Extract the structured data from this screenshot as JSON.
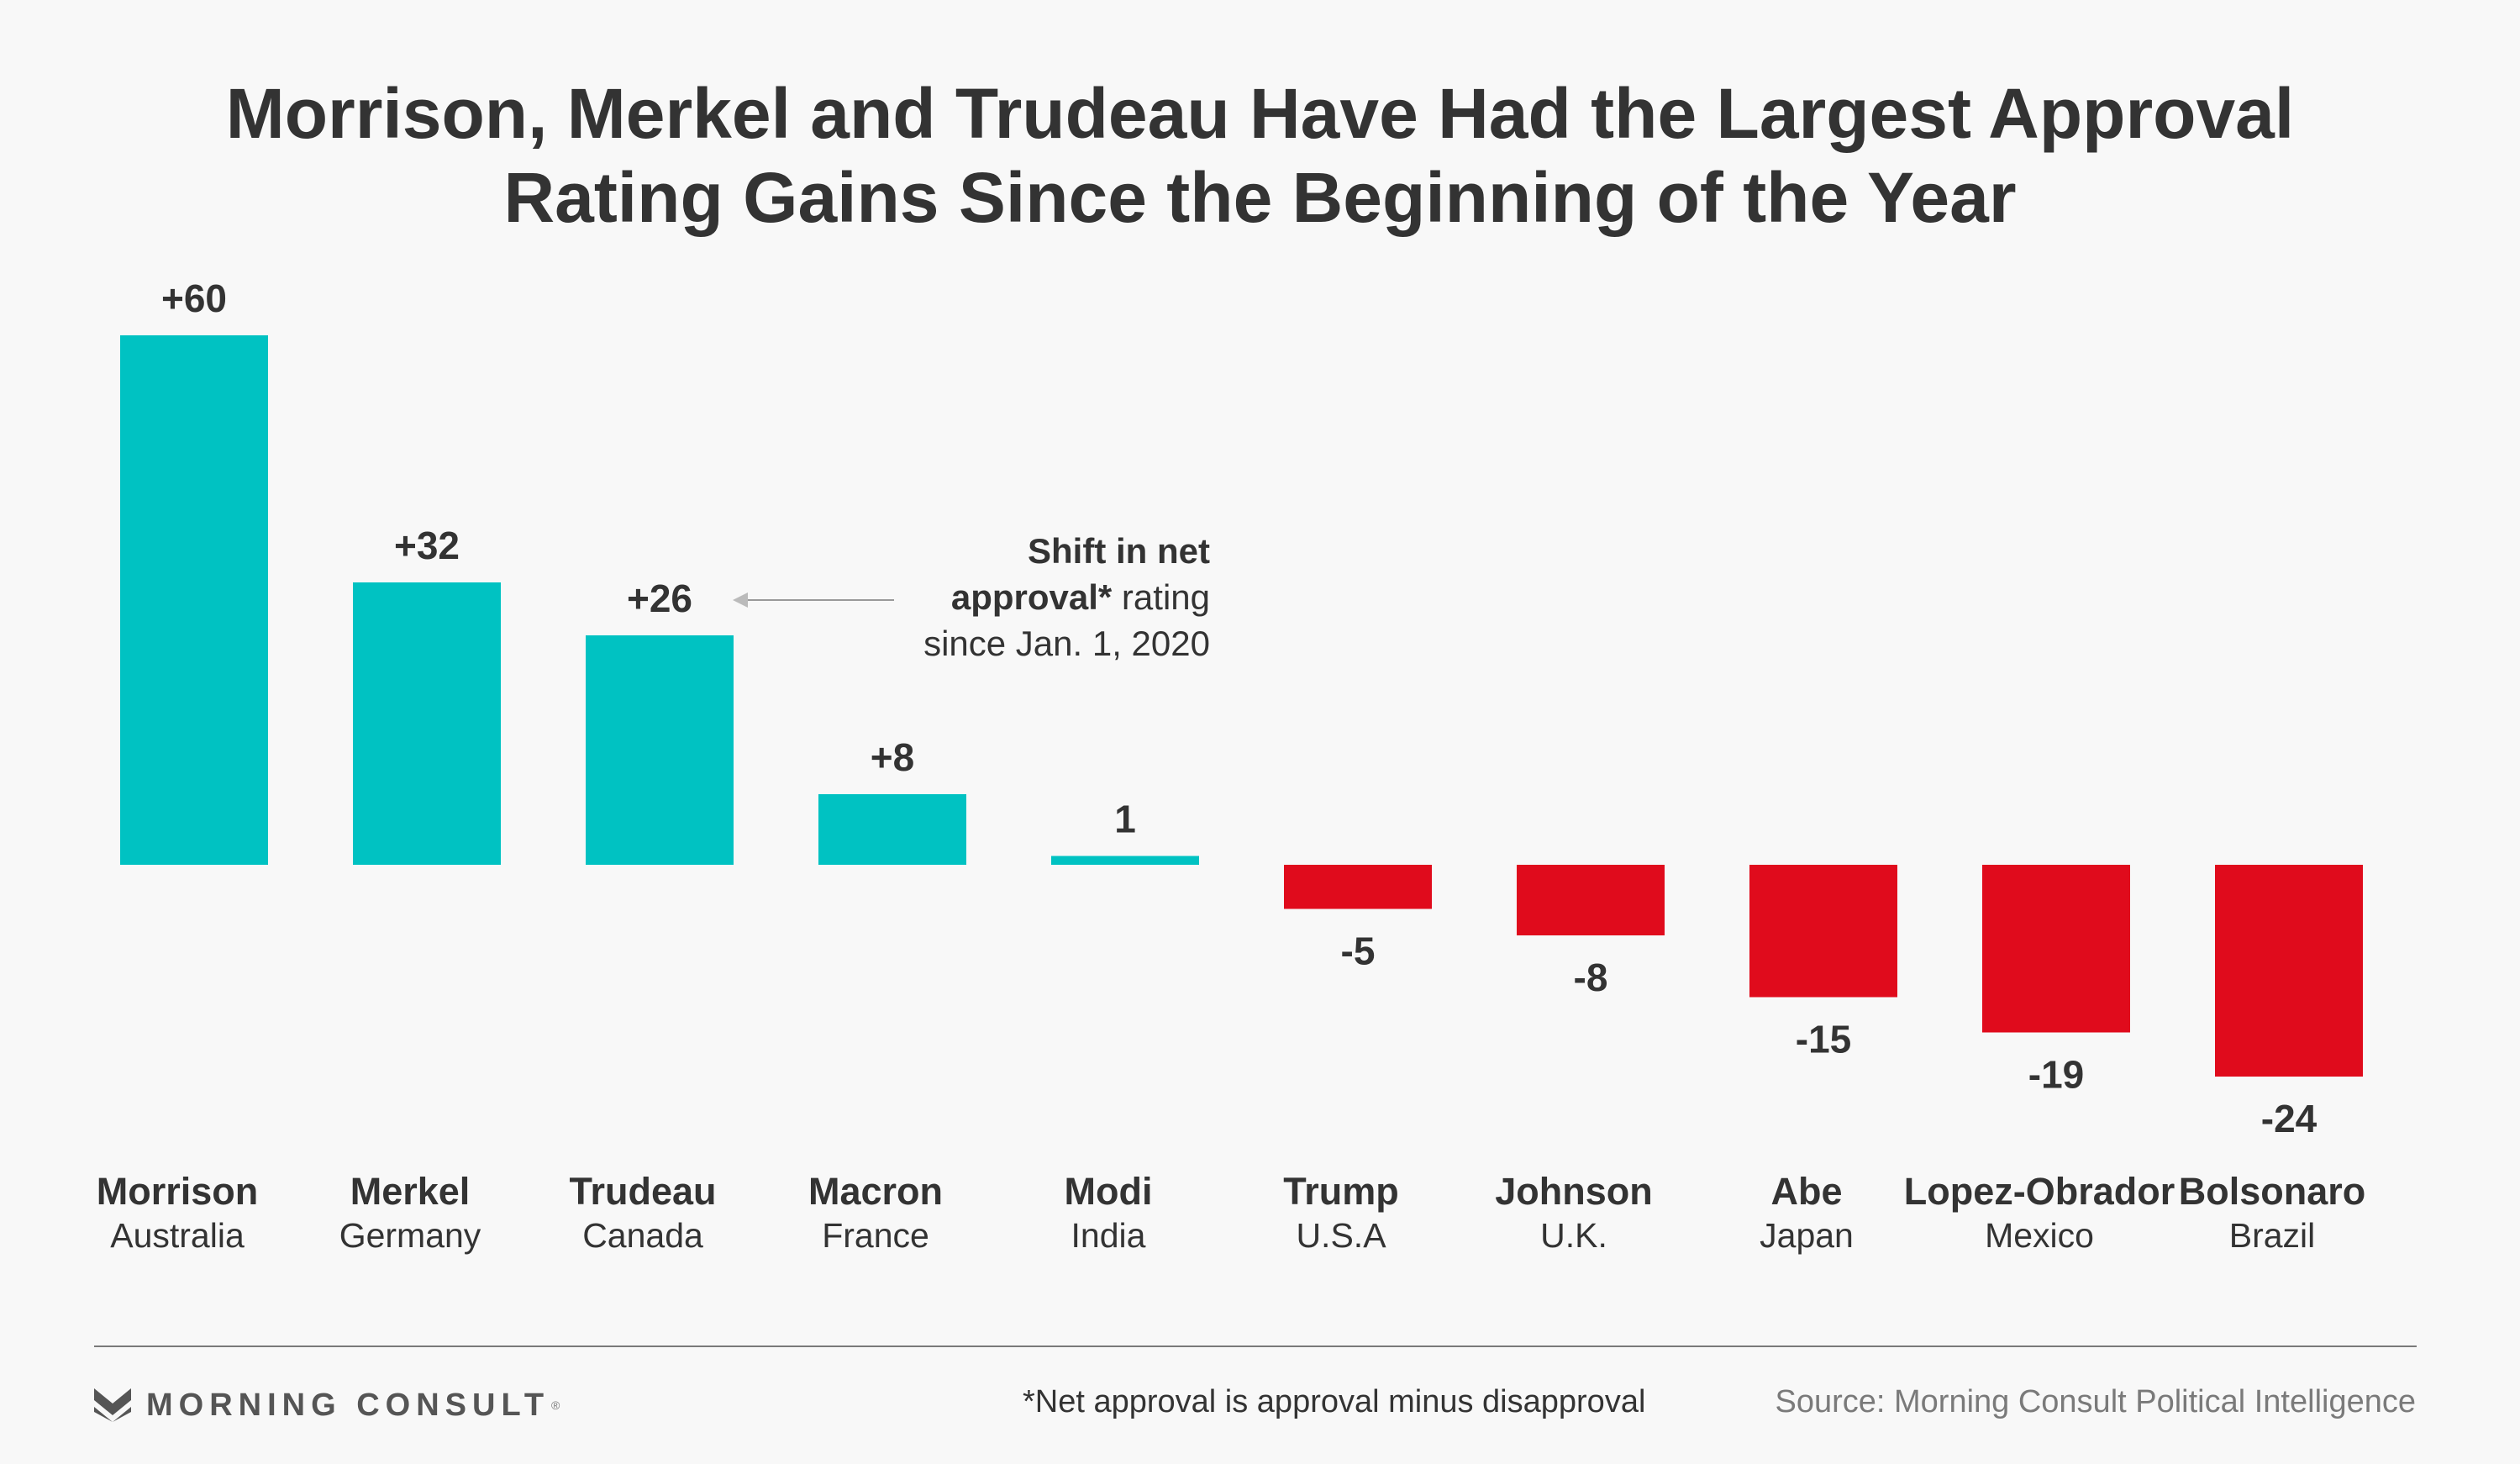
{
  "title_line1": "Morrison, Merkel and Trudeau Have Had the Largest Approval",
  "title_line2": "Rating Gains Since the Beginning of the Year",
  "annotation": {
    "line1_bold": "Shift in net",
    "line2_bold": "approval*",
    "line2_rest": " rating",
    "line3": "since Jan. 1, 2020"
  },
  "footnote": "*Net approval is approval minus disapproval",
  "source": "Source: Morning Consult Political Intelligence",
  "logo_text": "MORNING CONSULT",
  "logo_tm": "®",
  "colors": {
    "positive": "#00c2c2",
    "negative": "#e00b1c",
    "text": "#333333"
  },
  "chart_data": {
    "type": "bar",
    "title": "Morrison, Merkel and Trudeau Have Had the Largest Approval Rating Gains Since the Beginning of the Year",
    "categories": [
      "Morrison",
      "Merkel",
      "Trudeau",
      "Macron",
      "Modi",
      "Trump",
      "Johnson",
      "Abe",
      "Lopez-Obrador",
      "Bolsonaro"
    ],
    "countries": [
      "Australia",
      "Germany",
      "Canada",
      "France",
      "India",
      "U.S.A",
      "U.K.",
      "Japan",
      "Mexico",
      "Brazil"
    ],
    "values": [
      60,
      32,
      26,
      8,
      1,
      -5,
      -8,
      -15,
      -19,
      -24
    ],
    "labels": [
      "+60",
      "+32",
      "+26",
      "+8",
      "1",
      "-5",
      "-8",
      "-15",
      "-19",
      "-24"
    ],
    "xlabel": "",
    "ylabel": "",
    "grid": false
  }
}
